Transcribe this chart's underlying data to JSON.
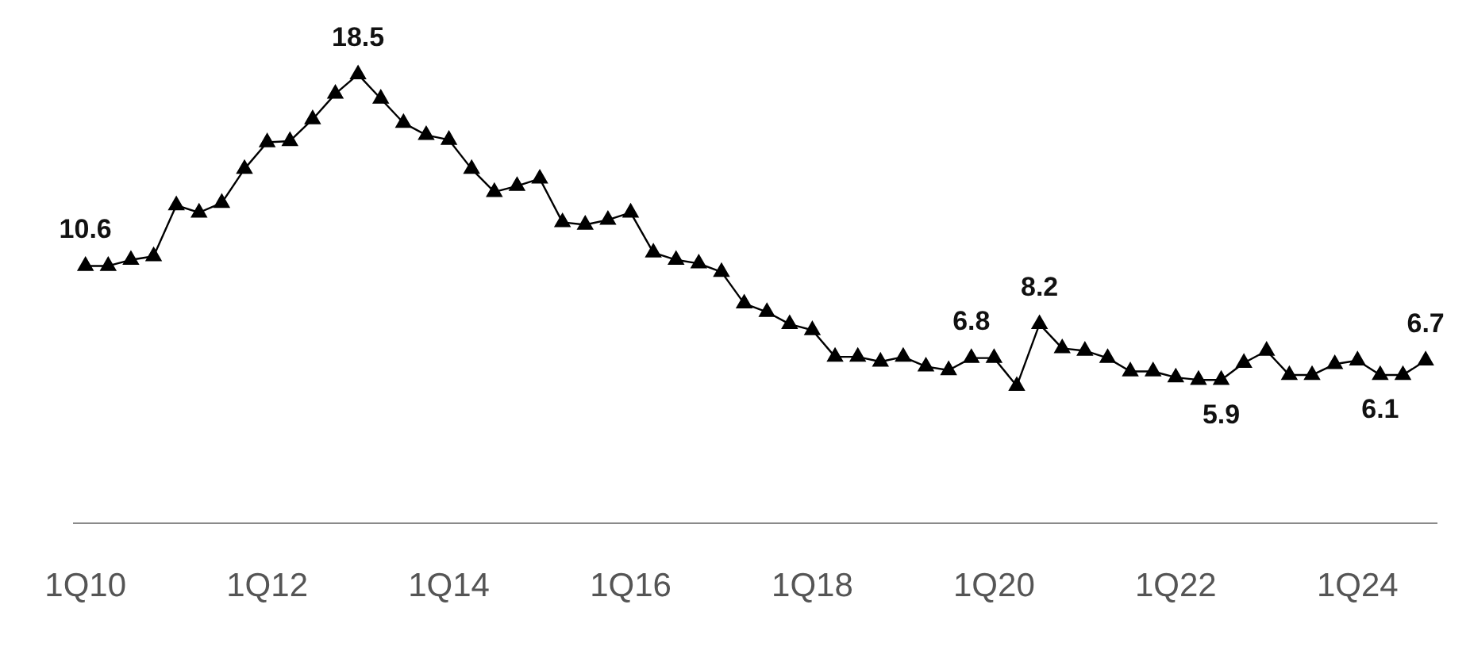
{
  "chart_data": {
    "type": "line",
    "categories": [
      "1Q10",
      null,
      null,
      null,
      null,
      null,
      null,
      null,
      "1Q12",
      null,
      null,
      null,
      null,
      null,
      null,
      null,
      "1Q14",
      null,
      null,
      null,
      null,
      null,
      null,
      null,
      "1Q16",
      null,
      null,
      null,
      null,
      null,
      null,
      null,
      "1Q18",
      null,
      null,
      null,
      null,
      null,
      null,
      null,
      "1Q20",
      null,
      null,
      null,
      null,
      null,
      null,
      null,
      "1Q22",
      null,
      null,
      null,
      null,
      null,
      null,
      null,
      "1Q24",
      null,
      null,
      null
    ],
    "series": [
      {
        "color": "#000000",
        "values": [
          10.6,
          10.6,
          10.85,
          11.0,
          13.1,
          12.8,
          13.2,
          14.6,
          15.7,
          15.75,
          16.65,
          17.7,
          18.5,
          17.5,
          16.5,
          16.0,
          15.8,
          14.6,
          13.65,
          13.9,
          14.2,
          12.4,
          12.3,
          12.5,
          12.8,
          11.15,
          10.85,
          10.7,
          10.35,
          9.05,
          8.7,
          8.2,
          7.95,
          6.85,
          6.85,
          6.65,
          6.85,
          6.45,
          6.3,
          6.8,
          6.8,
          5.65,
          8.2,
          7.2,
          7.1,
          6.8,
          6.25,
          6.25,
          6.0,
          5.9,
          5.9,
          6.6,
          7.1,
          6.1,
          6.1,
          6.55,
          6.7,
          6.1,
          6.1,
          6.7
        ],
        "value_labels": [
          "10.6",
          null,
          null,
          null,
          null,
          null,
          null,
          null,
          null,
          null,
          null,
          null,
          "18.5",
          null,
          null,
          null,
          null,
          null,
          null,
          null,
          null,
          null,
          null,
          null,
          null,
          null,
          null,
          null,
          null,
          null,
          null,
          null,
          null,
          null,
          null,
          null,
          null,
          null,
          null,
          "6.8",
          null,
          null,
          "8.2",
          null,
          null,
          null,
          null,
          null,
          null,
          null,
          "5.9",
          null,
          null,
          null,
          null,
          null,
          null,
          "6.1",
          null,
          "6.7"
        ]
      }
    ],
    "tick_labels": "x",
    "grid": false,
    "legend": false,
    "marker": "triangle",
    "line_style": "solid"
  }
}
